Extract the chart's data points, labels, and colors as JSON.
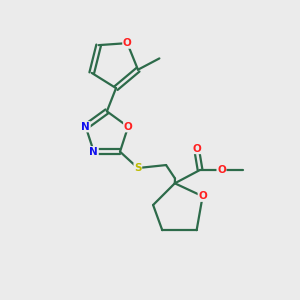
{
  "background_color": "#ebebeb",
  "bond_color": "#2d6b4a",
  "atom_colors": {
    "O": "#ff2020",
    "N": "#1010ee",
    "S": "#bbbb00",
    "C": "#2d6b4a"
  },
  "figsize": [
    3.0,
    3.0
  ],
  "dpi": 100
}
